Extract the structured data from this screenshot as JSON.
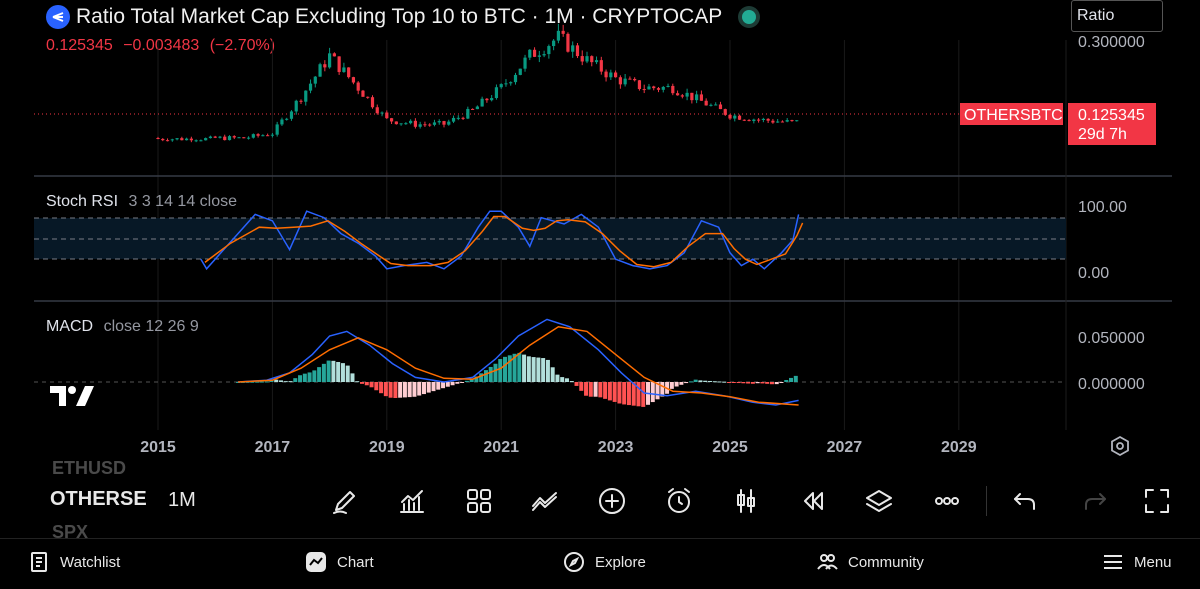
{
  "header": {
    "title": "Ratio Total Market Cap Excluding Top 10 to BTC · 1M · CRYPTOCAP",
    "ratio_label": "Ratio"
  },
  "ohlc": {
    "last": "0.125345",
    "change": "−0.003483",
    "change_pct": "(−2.70%)"
  },
  "price_axis": {
    "top_label": "0.300000",
    "symbol_tag": "OTHERSBTC",
    "price_tag": "0.125345",
    "countdown": "29d 7h"
  },
  "stoch": {
    "name": "Stoch RSI",
    "params": "3 3 14 14 close",
    "high_label": "100.00",
    "low_label": "0.00"
  },
  "macd": {
    "name": "MACD",
    "params": "close 12 26 9",
    "high_label": "0.050000",
    "zero_label": "0.000000"
  },
  "time_axis": [
    "2015",
    "2017",
    "2019",
    "2021",
    "2023",
    "2025",
    "2027",
    "2029"
  ],
  "chart_data": {
    "type": "candlestick",
    "symbol": "OTHERSBTC",
    "interval": "1M",
    "last_value": 0.125345,
    "approx_series": {
      "years": [
        2016.0,
        2016.5,
        2017.0,
        2017.5,
        2018.0,
        2018.5,
        2019.0,
        2019.5,
        2020.0,
        2020.5,
        2021.0,
        2021.5,
        2022.0,
        2022.5,
        2023.0,
        2023.5,
        2024.0,
        2024.5,
        2025.0,
        2025.5,
        2026.0
      ],
      "values": [
        0.09,
        0.09,
        0.1,
        0.18,
        0.27,
        0.2,
        0.13,
        0.12,
        0.12,
        0.15,
        0.2,
        0.27,
        0.31,
        0.26,
        0.22,
        0.2,
        0.2,
        0.17,
        0.14,
        0.13,
        0.125
      ]
    }
  },
  "bottom_toolbar": {
    "symbols_above": "ETHUSD",
    "symbol_current": "OTHERSE",
    "symbols_below": "SPX",
    "interval": "1M"
  },
  "nav": {
    "watchlist": "Watchlist",
    "chart": "Chart",
    "explore": "Explore",
    "community": "Community",
    "menu": "Menu"
  }
}
